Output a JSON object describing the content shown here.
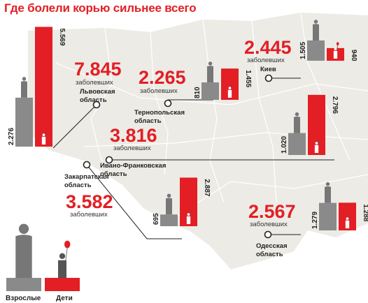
{
  "title": "Где болели корью сильнее всего",
  "colors": {
    "adults": "#8a8a8a",
    "children": "#e31e24",
    "map": "#ecebe6",
    "accent": "#e31e24"
  },
  "legend": {
    "adults_label": "Взрослые",
    "children_label": "Дети"
  },
  "chart_data": {
    "type": "bar",
    "series_names": {
      "adults": "Взрослые",
      "children": "Дети"
    },
    "regions": [
      {
        "region": "Львовская область",
        "total": "7.845",
        "total_label": "заболевших",
        "adults": 2276,
        "children": 5569,
        "adults_text": "2.276",
        "children_text": "5.569"
      },
      {
        "region": "Тернопольская область",
        "total": "2.265",
        "total_label": "заболевших",
        "adults": 810,
        "children": 1455,
        "adults_text": "810",
        "children_text": "1.455"
      },
      {
        "region": "Киев",
        "total": "2.445",
        "total_label": "заболевших",
        "adults": 1505,
        "children": 940,
        "adults_text": "1.505",
        "children_text": "940"
      },
      {
        "region": "Ивано-Франковская область",
        "total": "3.816",
        "total_label": "заболевших",
        "adults": 1020,
        "children": 2796,
        "adults_text": "1.020",
        "children_text": "2.796"
      },
      {
        "region": "Закарпатская область",
        "total": "3.582",
        "total_label": "заболевших",
        "adults": 695,
        "children": 2887,
        "adults_text": "695",
        "children_text": "2.887"
      },
      {
        "region": "Одесская область",
        "total": "2.567",
        "total_label": "заболевших",
        "adults": 1279,
        "children": 1288,
        "adults_text": "1.279",
        "children_text": "1.288"
      }
    ]
  }
}
